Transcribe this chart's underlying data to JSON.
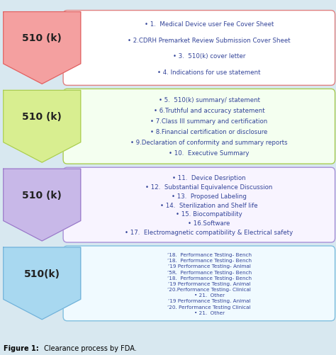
{
  "background_color": "#d8e8f0",
  "figure_bg": "#d8e8f0",
  "title_bold": "Figure 1:",
  "title_rest": " Clearance process by FDA.",
  "rows": [
    {
      "label": "510 (k)",
      "arrow_fill": "#f4a0a0",
      "arrow_border": "#e06060",
      "box_color": "#ffffff",
      "box_border": "#e08080",
      "text_color": "#334499",
      "items": [
        "• 1.  Medical Device user Fee Cover Sheet",
        "• 2.CDRH Premarket Review Submission Cover Sheet",
        "• 3.  510(k) cover letter",
        "• 4. Indications for use statement"
      ]
    },
    {
      "label": "510 (k)",
      "arrow_fill": "#d8ee90",
      "arrow_border": "#a8cc50",
      "box_color": "#f4fff0",
      "box_border": "#a8cc50",
      "text_color": "#334499",
      "items": [
        "• 5.  510(k) summary/ statement",
        "• 6.Truthful and accuracy statement",
        "• 7.Class III summary and certification",
        "• 8.Financial certification or disclosure",
        "• 9.Declaration of conformity and summary reports",
        "• 10.  Executive Summary"
      ]
    },
    {
      "label": "510 (k)",
      "arrow_fill": "#c8b8e8",
      "arrow_border": "#9878c8",
      "box_color": "#f8f4ff",
      "box_border": "#a890d8",
      "text_color": "#334499",
      "items": [
        "• 11.  Device Desription",
        "• 12.  Substantial Equivalence Discussion",
        "• 13.  Proposed Labeling",
        "• 14.  Sterilization and Shelf life",
        "• 15. Biocompatibility",
        "• 16.Software",
        "• 17.  Electromagnetic compatibility & Electrical safety"
      ]
    },
    {
      "label": "510(k)",
      "arrow_fill": "#a8d8f0",
      "arrow_border": "#70b0d8",
      "box_color": "#f0faff",
      "box_border": "#80c0e0",
      "text_color": "#334499",
      "items": [
        "’18.  Performance Testing- Bench",
        "’18.  Performance Testing- Bench",
        "’19 Performance Testing- Animal",
        "’5R.  Performance Testing- Bench",
        "’18.  Performance Testing- Bench",
        "’19 Performance Testing. Animal",
        "’20.Performance Testing- Clinical",
        "• 21.  Other",
        "’19 Performance Testing. Animal",
        "’20. Performance Testing Clinical",
        "• 21.  Other"
      ]
    }
  ]
}
